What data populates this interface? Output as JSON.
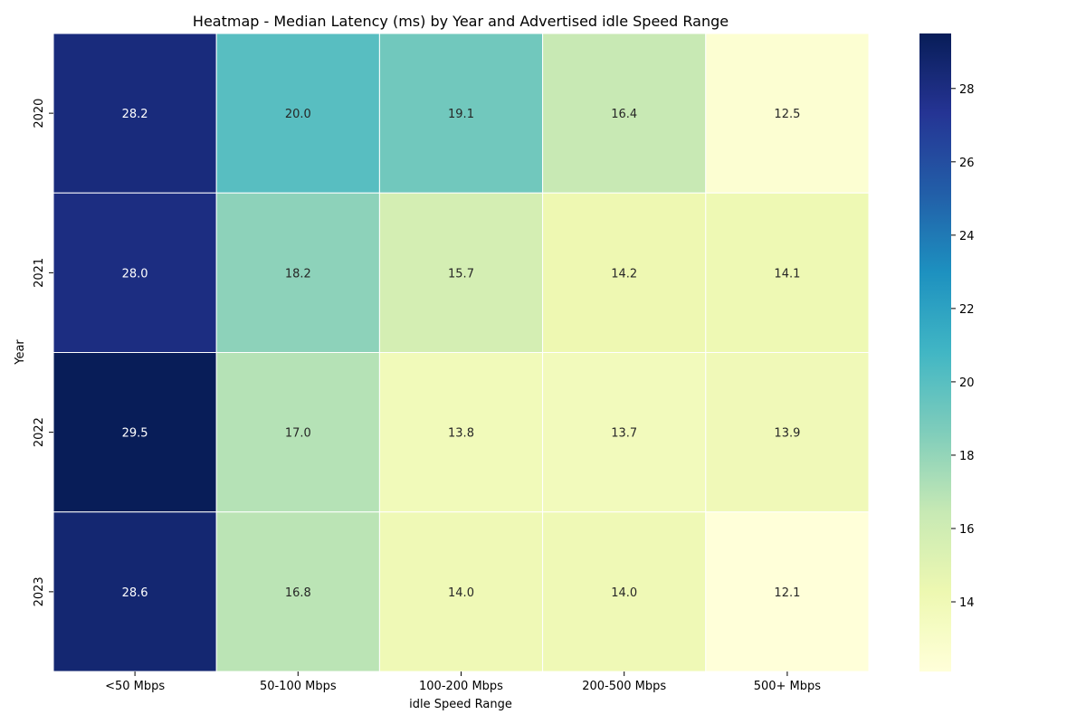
{
  "chart_data": {
    "type": "heatmap",
    "title": "Heatmap - Median Latency (ms) by Year and Advertised idle Speed Range",
    "xlabel": "idle Speed Range",
    "ylabel": "Year",
    "x_categories": [
      "<50 Mbps",
      "50-100 Mbps",
      "100-200 Mbps",
      "200-500 Mbps",
      "500+ Mbps"
    ],
    "y_categories": [
      "2020",
      "2021",
      "2022",
      "2023"
    ],
    "values": [
      [
        28.2,
        20.0,
        19.1,
        16.4,
        12.5
      ],
      [
        28.0,
        18.2,
        15.7,
        14.2,
        14.1
      ],
      [
        29.5,
        17.0,
        13.8,
        13.7,
        13.9
      ],
      [
        28.6,
        16.8,
        14.0,
        14.0,
        12.1
      ]
    ],
    "value_format": "0.0",
    "annotations": true,
    "colormap": "YlGnBu",
    "colorbar": {
      "vmin": 12.1,
      "vmax": 29.5,
      "ticks": [
        14,
        16,
        18,
        20,
        22,
        24,
        26,
        28
      ],
      "tick_labels": [
        "14",
        "16",
        "18",
        "20",
        "22",
        "24",
        "26",
        "28"
      ]
    },
    "grid": false
  }
}
